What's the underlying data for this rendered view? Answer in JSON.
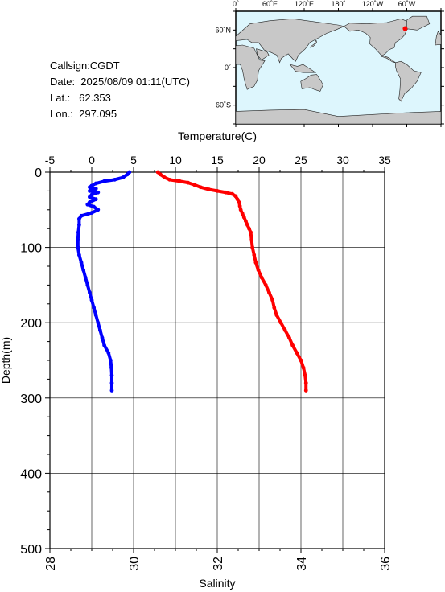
{
  "info": {
    "callsign": "Callsign:CGDT",
    "date": "Date:  2025/08/09 01:11(UTC)",
    "lat": "Lat.:   62.353",
    "lon": "Lon.:  297.095"
  },
  "map": {
    "top_labels": [
      "0˚",
      "60˚E",
      "120˚E",
      "180˚",
      "120˚W",
      "60˚W"
    ],
    "side_labels": [
      "60˚N",
      "0˚",
      "60˚S"
    ],
    "ocean_color": "#ddf6fd",
    "land_color": "#c8c8c8",
    "marker_color": "#ff0000"
  },
  "chart_data": {
    "type": "line",
    "title": "",
    "temperature_axis": {
      "label": "Temperature(C)",
      "range": [
        -5,
        35
      ],
      "ticks": [
        "-5",
        "0",
        "5",
        "10",
        "15",
        "20",
        "25",
        "30",
        "35"
      ]
    },
    "salinity_axis": {
      "label": "Salinity",
      "range": [
        28,
        36
      ],
      "ticks": [
        "28",
        "30",
        "32",
        "34",
        "36"
      ]
    },
    "depth_axis": {
      "label": "Depth(m)",
      "range": [
        0,
        500
      ],
      "ticks": [
        "0",
        "100",
        "200",
        "300",
        "400",
        "500"
      ]
    },
    "grid": true,
    "series": [
      {
        "name": "Temperature",
        "color": "#ff0000",
        "axis": "temperature",
        "points": [
          [
            7.9,
            0
          ],
          [
            8.2,
            3
          ],
          [
            8.7,
            7
          ],
          [
            9.3,
            10
          ],
          [
            10.5,
            12
          ],
          [
            11.5,
            14
          ],
          [
            12.3,
            17
          ],
          [
            13.0,
            20
          ],
          [
            14.0,
            23
          ],
          [
            15.0,
            25
          ],
          [
            16.0,
            27
          ],
          [
            16.8,
            29
          ],
          [
            17.2,
            32
          ],
          [
            17.4,
            36
          ],
          [
            17.6,
            40
          ],
          [
            17.7,
            45
          ],
          [
            17.8,
            50
          ],
          [
            18.0,
            55
          ],
          [
            18.2,
            60
          ],
          [
            18.4,
            65
          ],
          [
            18.6,
            70
          ],
          [
            18.8,
            75
          ],
          [
            19.0,
            80
          ],
          [
            19.1,
            90
          ],
          [
            19.2,
            100
          ],
          [
            19.4,
            110
          ],
          [
            19.6,
            120
          ],
          [
            19.9,
            130
          ],
          [
            20.3,
            140
          ],
          [
            20.8,
            150
          ],
          [
            21.2,
            160
          ],
          [
            21.6,
            170
          ],
          [
            21.8,
            180
          ],
          [
            22.1,
            190
          ],
          [
            22.6,
            200
          ],
          [
            23.1,
            210
          ],
          [
            23.6,
            220
          ],
          [
            24.0,
            230
          ],
          [
            24.5,
            240
          ],
          [
            25.0,
            250
          ],
          [
            25.3,
            260
          ],
          [
            25.5,
            270
          ],
          [
            25.6,
            280
          ],
          [
            25.6,
            290
          ]
        ]
      },
      {
        "name": "Salinity",
        "color": "#0000ff",
        "axis": "salinity",
        "points": [
          [
            29.9,
            0
          ],
          [
            29.85,
            3
          ],
          [
            29.75,
            7
          ],
          [
            29.55,
            10
          ],
          [
            29.3,
            12
          ],
          [
            29.1,
            15
          ],
          [
            29.0,
            18
          ],
          [
            28.95,
            20
          ],
          [
            29.1,
            22
          ],
          [
            28.95,
            25
          ],
          [
            29.15,
            27
          ],
          [
            29.0,
            30
          ],
          [
            28.95,
            33
          ],
          [
            29.1,
            36
          ],
          [
            28.95,
            40
          ],
          [
            28.9,
            43
          ],
          [
            29.05,
            46
          ],
          [
            29.15,
            50
          ],
          [
            29.0,
            54
          ],
          [
            28.75,
            58
          ],
          [
            28.7,
            62
          ],
          [
            28.7,
            70
          ],
          [
            28.68,
            80
          ],
          [
            28.67,
            90
          ],
          [
            28.67,
            100
          ],
          [
            28.7,
            110
          ],
          [
            28.75,
            120
          ],
          [
            28.8,
            130
          ],
          [
            28.85,
            140
          ],
          [
            28.9,
            150
          ],
          [
            28.95,
            160
          ],
          [
            29.0,
            170
          ],
          [
            29.05,
            180
          ],
          [
            29.1,
            190
          ],
          [
            29.15,
            200
          ],
          [
            29.2,
            210
          ],
          [
            29.25,
            220
          ],
          [
            29.3,
            230
          ],
          [
            29.4,
            240
          ],
          [
            29.45,
            250
          ],
          [
            29.47,
            260
          ],
          [
            29.48,
            270
          ],
          [
            29.48,
            280
          ],
          [
            29.48,
            290
          ]
        ]
      }
    ]
  }
}
